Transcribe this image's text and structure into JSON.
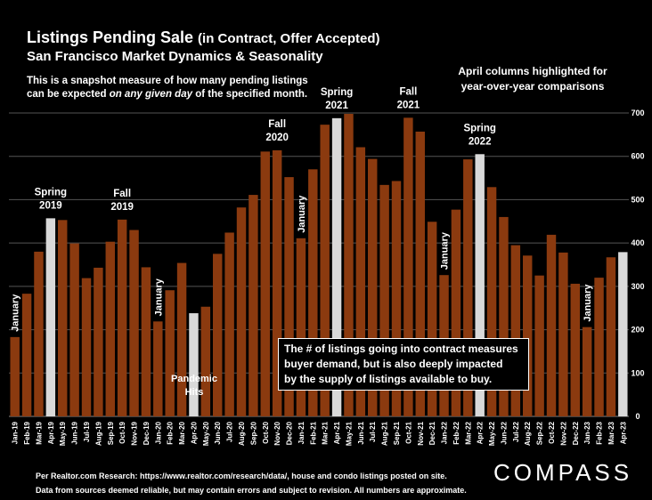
{
  "header": {
    "title": "Listings Pending Sale",
    "title_suffix": "(in Contract, Offer Accepted)",
    "subtitle": "San Francisco Market Dynamics & Seasonality",
    "desc_line1": "This is a snapshot measure of how many pending listings",
    "desc_line2_pre": "can be expected ",
    "desc_line2_em": "on any given day",
    "desc_line2_post": " of the specified month.",
    "note_line1": "April columns highlighted for",
    "note_line2": "year-over-year comparisons"
  },
  "callout": {
    "line1": "The # of listings going into contract measures",
    "line2": "buyer demand, but is also deeply impacted",
    "line3": "by the supply of listings available to buy."
  },
  "pandemic": {
    "line1": "Pandemic",
    "line2": "Hits"
  },
  "footer": {
    "line1": "Per Realtor.com Research:  https://www.realtor.com/research/data/, house and condo listings posted on site.",
    "line2": "Data from sources deemed reliable, but may contain errors and subject to revision. All numbers are approximate."
  },
  "brand": {
    "logo": "COMPASS"
  },
  "colors": {
    "bar": "#8B3A0F",
    "highlight": "#D9D9D9",
    "grid": "#555555"
  },
  "chart_data": {
    "type": "bar",
    "ylim": [
      0,
      700
    ],
    "yticks": [
      0,
      100,
      200,
      300,
      400,
      500,
      600,
      700
    ],
    "grid": true,
    "categories": [
      "Jan-19",
      "Feb-19",
      "Mar-19",
      "Apr-19",
      "May-19",
      "Jun-19",
      "Jul-19",
      "Aug-19",
      "Sep-19",
      "Oct-19",
      "Nov-19",
      "Dec-19",
      "Jan-20",
      "Feb-20",
      "Mar-20",
      "Apr-20",
      "May-20",
      "Jun-20",
      "Jul-20",
      "Aug-20",
      "Sep-20",
      "Oct-20",
      "Nov-20",
      "Dec-20",
      "Jan-21",
      "Feb-21",
      "Mar-21",
      "Apr-21",
      "May-21",
      "Jun-21",
      "Jul-21",
      "Aug-21",
      "Sep-21",
      "Oct-21",
      "Nov-21",
      "Dec-21",
      "Jan-22",
      "Feb-22",
      "Mar-22",
      "Apr-22",
      "May-22",
      "Jun-22",
      "Jul-22",
      "Aug-22",
      "Sep-22",
      "Oct-22",
      "Nov-22",
      "Dec-22",
      "Jan-23",
      "Feb-23",
      "Mar-23",
      "Apr-23"
    ],
    "values": [
      183,
      283,
      380,
      457,
      453,
      399,
      319,
      343,
      403,
      454,
      430,
      344,
      219,
      291,
      354,
      238,
      253,
      375,
      424,
      482,
      511,
      611,
      614,
      552,
      411,
      570,
      673,
      688,
      698,
      621,
      594,
      534,
      543,
      689,
      657,
      449,
      326,
      477,
      593,
      605,
      529,
      460,
      395,
      371,
      325,
      419,
      378,
      306,
      206,
      320,
      367,
      379
    ],
    "highlighted": [
      "Apr-19",
      "Apr-20",
      "Apr-21",
      "Apr-22",
      "Apr-23"
    ],
    "annotations": [
      {
        "label": "January",
        "at": "Jan-19",
        "vertical": true
      },
      {
        "label": "Spring 2019",
        "at": "Apr-19"
      },
      {
        "label": "Fall 2019",
        "at": "Oct-19"
      },
      {
        "label": "January",
        "at": "Jan-20",
        "vertical": true
      },
      {
        "label": "Fall 2020",
        "at": "Nov-20"
      },
      {
        "label": "January",
        "at": "Jan-21",
        "vertical": true
      },
      {
        "label": "Spring 2021",
        "at": "Apr-21"
      },
      {
        "label": "Fall 2021",
        "at": "Oct-21"
      },
      {
        "label": "January",
        "at": "Jan-22",
        "vertical": true
      },
      {
        "label": "Spring 2022",
        "at": "Apr-22"
      },
      {
        "label": "January",
        "at": "Jan-23",
        "vertical": true
      }
    ]
  }
}
